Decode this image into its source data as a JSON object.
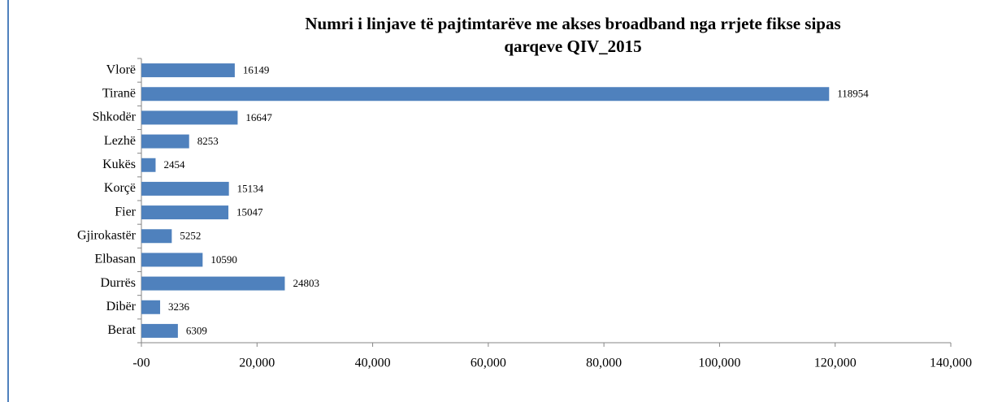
{
  "chart_data": {
    "type": "bar",
    "orientation": "horizontal",
    "title": [
      "Numri  i linjave të pajtimtarëve me akses broadband nga rrjete fikse  sipas",
      "qarqeve  QIV_2015"
    ],
    "categories": [
      "Vlorë",
      "Tiranë",
      "Shkodër",
      "Lezhë",
      "Kukës",
      "Korçë",
      "Fier",
      "Gjirokastër",
      "Elbasan",
      "Durrës",
      "Dibër",
      "Berat"
    ],
    "values": [
      16149,
      118954,
      16647,
      8253,
      2454,
      15134,
      15047,
      5252,
      10590,
      24803,
      3236,
      6309
    ],
    "color": "#4f81bd",
    "xlim": [
      0,
      140000
    ],
    "xticks": [
      {
        "value": 0,
        "label": "-00"
      },
      {
        "value": 20000,
        "label": "20,000"
      },
      {
        "value": 40000,
        "label": "40,000"
      },
      {
        "value": 60000,
        "label": "60,000"
      },
      {
        "value": 80000,
        "label": "80,000"
      },
      {
        "value": 100000,
        "label": "100,000"
      },
      {
        "value": 120000,
        "label": "120,000"
      },
      {
        "value": 140000,
        "label": "140,000"
      }
    ],
    "grid": false
  }
}
